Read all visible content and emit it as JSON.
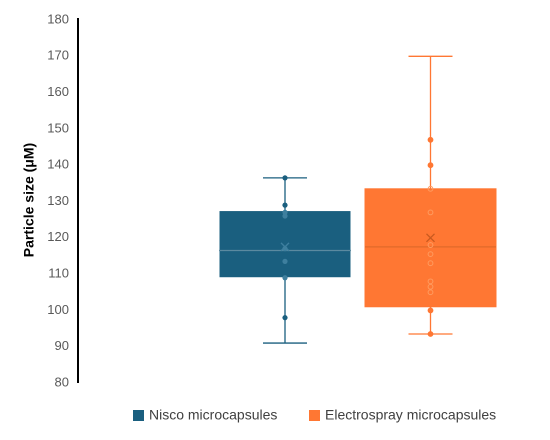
{
  "chart_data": {
    "type": "box",
    "ylabel": "Particle size  (μM)",
    "ylim": [
      80,
      180
    ],
    "yticks": [
      80,
      90,
      100,
      110,
      120,
      130,
      140,
      150,
      160,
      170,
      180
    ],
    "grid": false,
    "legend_position": "bottom",
    "series": [
      {
        "name": "Nisco microcapsules",
        "color": "#1a5f7f",
        "min": 91,
        "q1": 109,
        "median": 116.5,
        "q3": 127.5,
        "max": 136.5,
        "mean": 117.5,
        "points": [
          136.5,
          129,
          127,
          126,
          117,
          113.5,
          109,
          98
        ],
        "points_filled": true
      },
      {
        "name": "Electrospray microcapsules",
        "color": "#ff7733",
        "min": 93.5,
        "q1": 101,
        "median": 117.5,
        "q3": 133.5,
        "max": 170,
        "mean": 120,
        "points": [
          147,
          140,
          133.5,
          127,
          118,
          115.5,
          113,
          108,
          106.5,
          105,
          100,
          93.5
        ],
        "points_filled": false
      }
    ]
  }
}
